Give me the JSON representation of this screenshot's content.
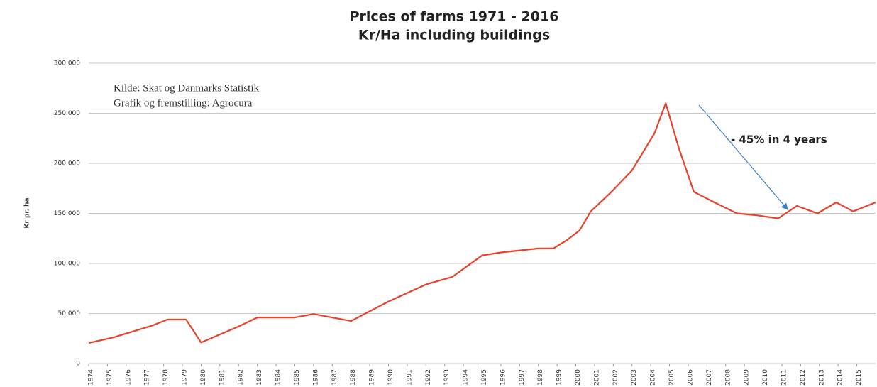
{
  "chart_data": {
    "type": "line",
    "title": "Prices of farms 1971 - 2016",
    "subtitle": "Kr/Ha including buildings",
    "y_label": "Kr pr. ha",
    "annotations": [
      "Kilde: Skat og Danmarks Statistik",
      "Grafik og fremstilling: Agrocura",
      "- 45% in 4 years"
    ],
    "x": [
      1974,
      1975.3,
      1977.4,
      1978.2,
      1979.2,
      1980,
      1982,
      1983,
      1985,
      1986,
      1988,
      1990,
      1992,
      1993.4,
      1995,
      1996,
      1998,
      1998.8,
      1999.5,
      2000.2,
      2000.8,
      2001.9,
      2003,
      2004.2,
      2004.8,
      2005.5,
      2006.3,
      2007.4,
      2008.6,
      2009.7,
      2010.8,
      2011.8,
      2012.9,
      2013.9,
      2014.8,
      2016
    ],
    "series": [
      {
        "name": "Kr/Ha",
        "color": "#e8412c",
        "values": [
          20500,
          26000,
          38000,
          44000,
          44000,
          21000,
          37000,
          46000,
          46000,
          49500,
          42500,
          62000,
          79000,
          86500,
          108000,
          111000,
          115000,
          115000,
          123000,
          133000,
          152000,
          171500,
          193000,
          230000,
          260000,
          215000,
          171500,
          161000,
          150000,
          148000,
          145000,
          157500,
          150000,
          161000,
          152000,
          161000
        ]
      }
    ],
    "xlim": [
      1974,
      2016
    ],
    "xticks": [
      1974,
      1975,
      1976,
      1977,
      1978,
      1979,
      1980,
      1981,
      1982,
      1983,
      1984,
      1985,
      1986,
      1987,
      1988,
      1989,
      1990,
      1991,
      1992,
      1993,
      1994,
      1995,
      1996,
      1997,
      1998,
      1999,
      2000,
      2001,
      2002,
      2003,
      2004,
      2005,
      2006,
      2007,
      2008,
      2009,
      2010,
      2011,
      2012,
      2013,
      2014,
      2015
    ],
    "ylim": [
      0,
      300000
    ],
    "yticks": [
      0,
      {
        "value": 50000,
        "label": "50.000"
      },
      {
        "value": 100000,
        "label": "100.000"
      },
      {
        "value": 150000,
        "label": "150.000"
      },
      {
        "value": 200000,
        "label": "200.000"
      },
      {
        "value": 250000,
        "label": "250.000"
      },
      {
        "value": 300000,
        "label": "300.000"
      }
    ],
    "grid": true
  }
}
